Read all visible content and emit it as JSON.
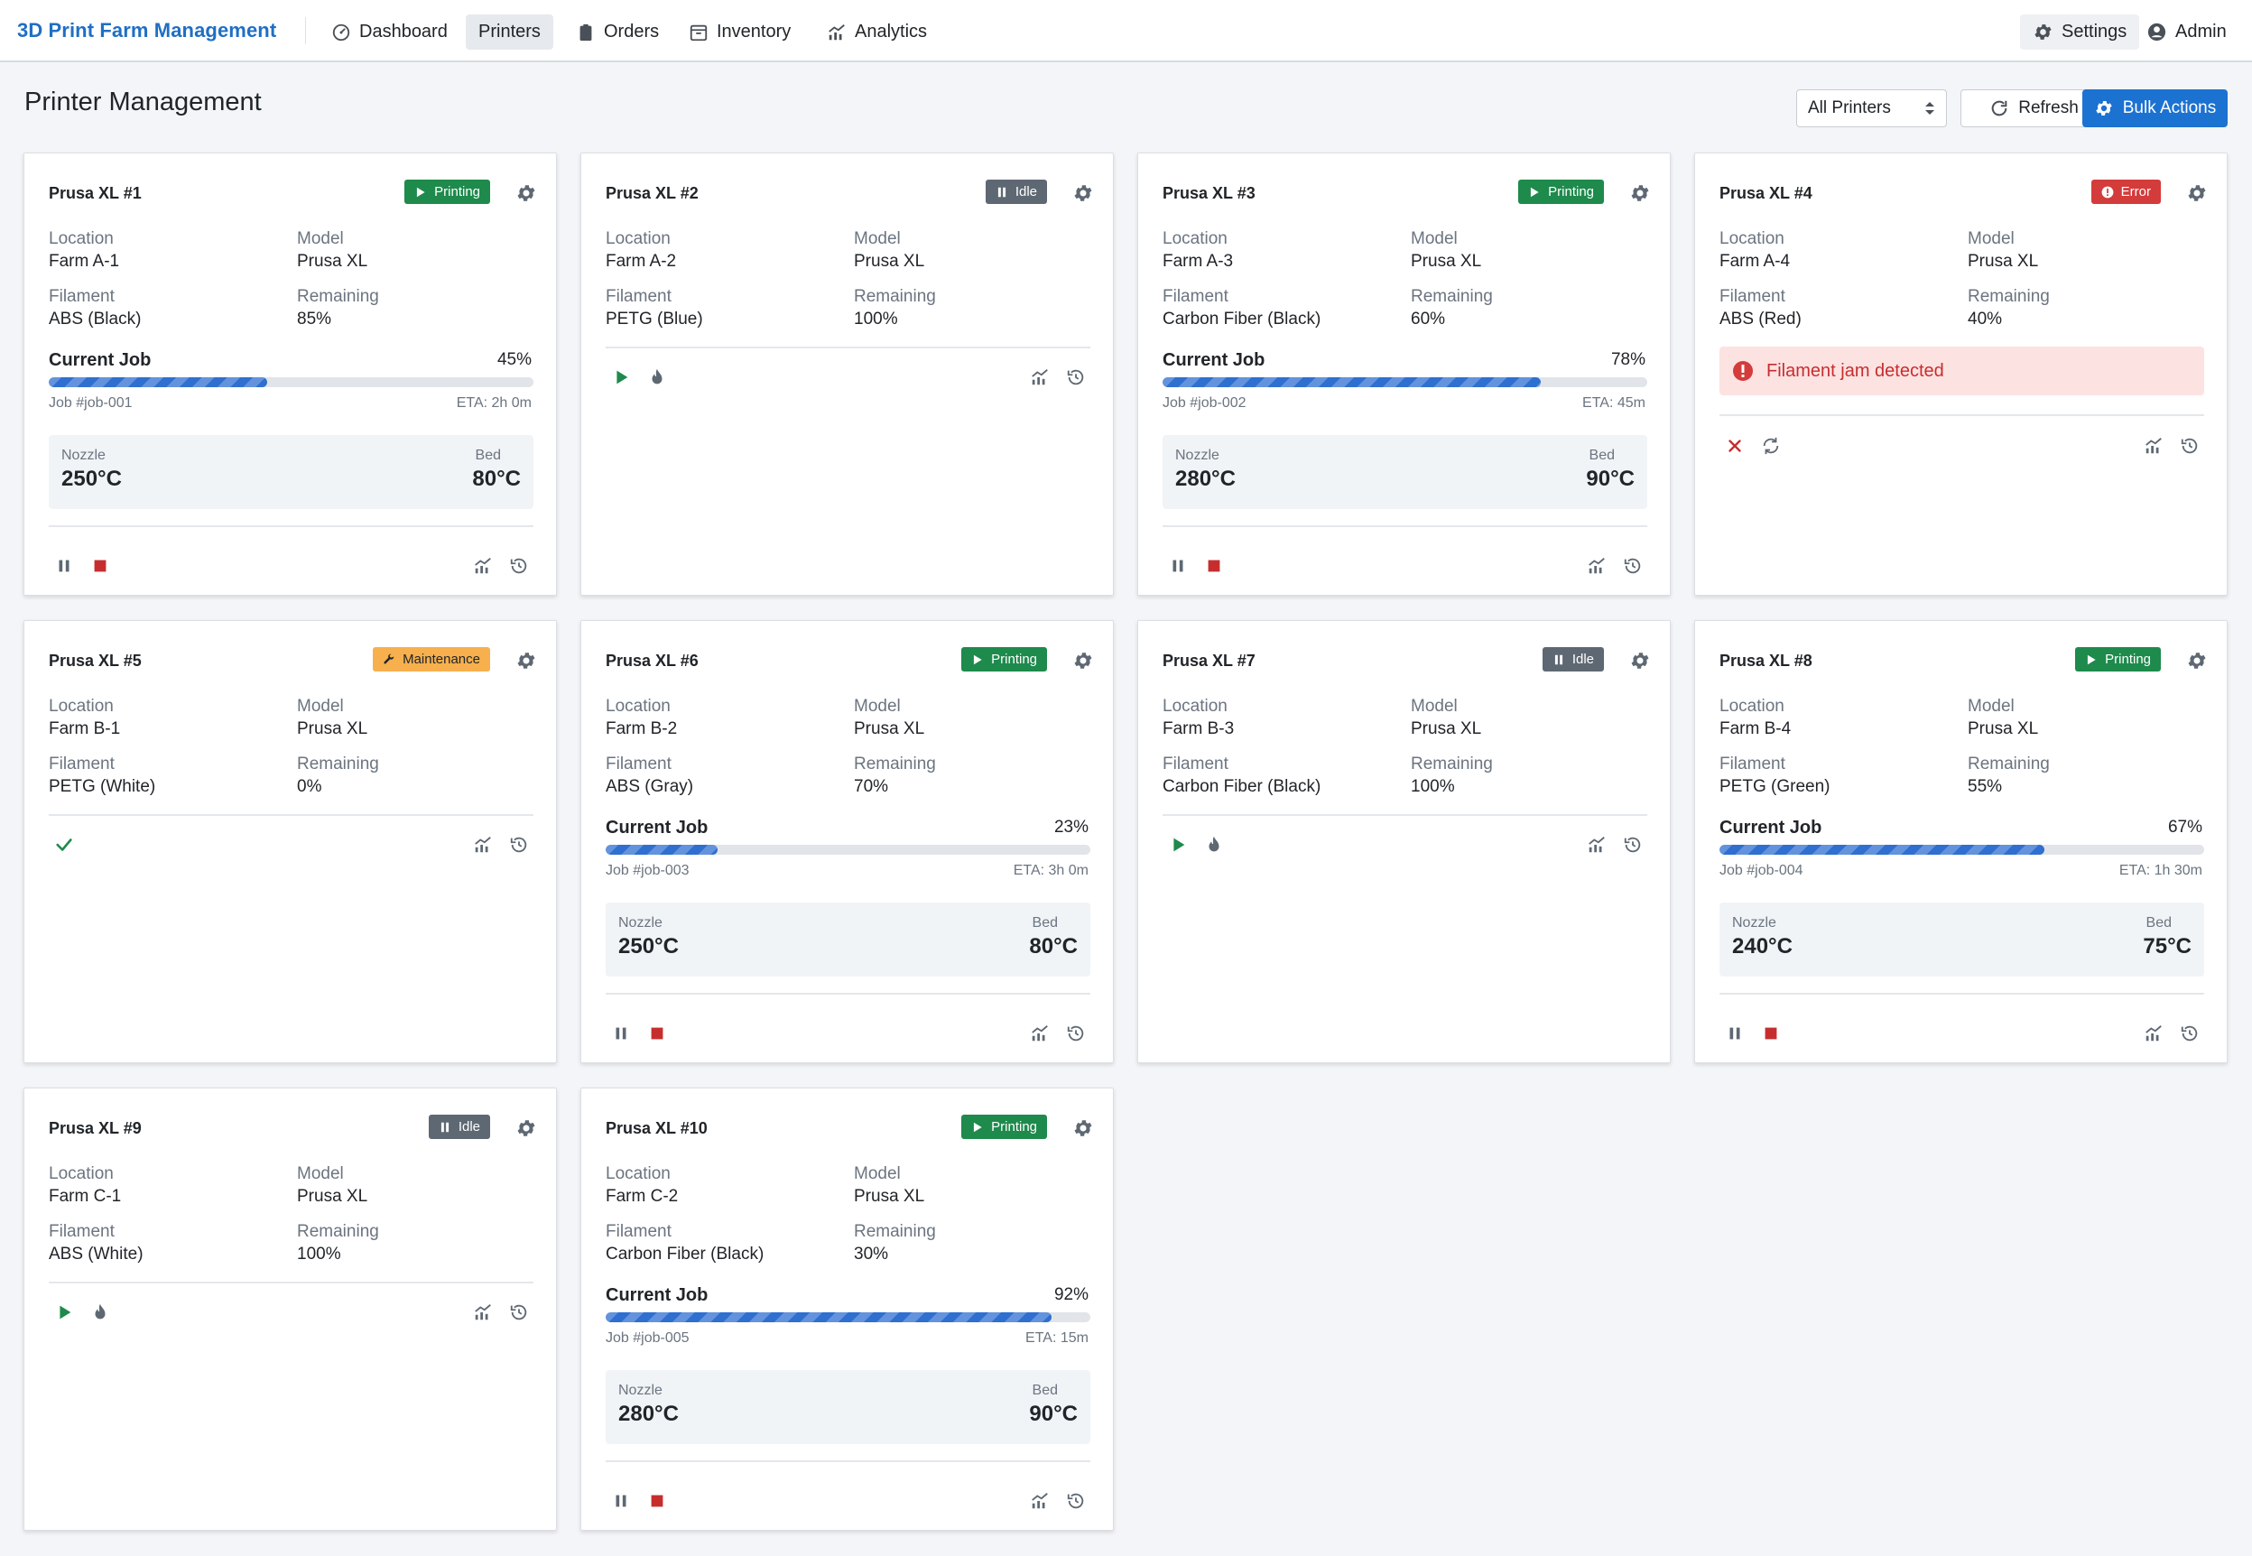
{
  "app": {
    "title": "3D Print Farm Management"
  },
  "nav": {
    "items": [
      {
        "label": "Dashboard",
        "icon": "dashboard-icon"
      },
      {
        "label": "Printers",
        "icon": "",
        "active": true
      },
      {
        "label": "Orders",
        "icon": "clipboard-icon"
      },
      {
        "label": "Inventory",
        "icon": "inventory-box-icon"
      },
      {
        "label": "Analytics",
        "icon": "chart-line-icon"
      }
    ],
    "settings_label": "Settings",
    "user_label": "Admin"
  },
  "page": {
    "title": "Printer Management",
    "filter_value": "All Printers",
    "refresh_label": "Refresh",
    "bulk_label": "Bulk Actions"
  },
  "labels": {
    "location": "Location",
    "model": "Model",
    "filament": "Filament",
    "remaining": "Remaining",
    "current_job": "Current Job",
    "nozzle": "Nozzle",
    "bed": "Bed"
  },
  "colors": {
    "accent": "#1c72d1",
    "printing": "#1e8a4c",
    "idle": "#5e6873",
    "error": "#d43b3b",
    "maintenance": "#f7b04d"
  },
  "printers": [
    {
      "name": "Prusa XL #1",
      "status": "Printing",
      "location": "Farm A-1",
      "model": "Prusa XL",
      "filament": "ABS (Black)",
      "remaining": "85%",
      "job": {
        "progress": 45,
        "progress_label": "45%",
        "id": "Job #job-001",
        "eta": "ETA: 2h 0m",
        "nozzle": "250°C",
        "bed": "80°C"
      }
    },
    {
      "name": "Prusa XL #2",
      "status": "Idle",
      "location": "Farm A-2",
      "model": "Prusa XL",
      "filament": "PETG (Blue)",
      "remaining": "100%"
    },
    {
      "name": "Prusa XL #3",
      "status": "Printing",
      "location": "Farm A-3",
      "model": "Prusa XL",
      "filament": "Carbon Fiber (Black)",
      "remaining": "60%",
      "job": {
        "progress": 78,
        "progress_label": "78%",
        "id": "Job #job-002",
        "eta": "ETA: 45m",
        "nozzle": "280°C",
        "bed": "90°C"
      }
    },
    {
      "name": "Prusa XL #4",
      "status": "Error",
      "location": "Farm A-4",
      "model": "Prusa XL",
      "filament": "ABS (Red)",
      "remaining": "40%",
      "error_message": "Filament jam detected"
    },
    {
      "name": "Prusa XL #5",
      "status": "Maintenance",
      "location": "Farm B-1",
      "model": "Prusa XL",
      "filament": "PETG (White)",
      "remaining": "0%"
    },
    {
      "name": "Prusa XL #6",
      "status": "Printing",
      "location": "Farm B-2",
      "model": "Prusa XL",
      "filament": "ABS (Gray)",
      "remaining": "70%",
      "job": {
        "progress": 23,
        "progress_label": "23%",
        "id": "Job #job-003",
        "eta": "ETA: 3h 0m",
        "nozzle": "250°C",
        "bed": "80°C"
      }
    },
    {
      "name": "Prusa XL #7",
      "status": "Idle",
      "location": "Farm B-3",
      "model": "Prusa XL",
      "filament": "Carbon Fiber (Black)",
      "remaining": "100%"
    },
    {
      "name": "Prusa XL #8",
      "status": "Printing",
      "location": "Farm B-4",
      "model": "Prusa XL",
      "filament": "PETG (Green)",
      "remaining": "55%",
      "job": {
        "progress": 67,
        "progress_label": "67%",
        "id": "Job #job-004",
        "eta": "ETA: 1h 30m",
        "nozzle": "240°C",
        "bed": "75°C"
      }
    },
    {
      "name": "Prusa XL #9",
      "status": "Idle",
      "location": "Farm C-1",
      "model": "Prusa XL",
      "filament": "ABS (White)",
      "remaining": "100%"
    },
    {
      "name": "Prusa XL #10",
      "status": "Printing",
      "location": "Farm C-2",
      "model": "Prusa XL",
      "filament": "Carbon Fiber (Black)",
      "remaining": "30%",
      "job": {
        "progress": 92,
        "progress_label": "92%",
        "id": "Job #job-005",
        "eta": "ETA: 15m",
        "nozzle": "280°C",
        "bed": "90°C"
      }
    }
  ]
}
